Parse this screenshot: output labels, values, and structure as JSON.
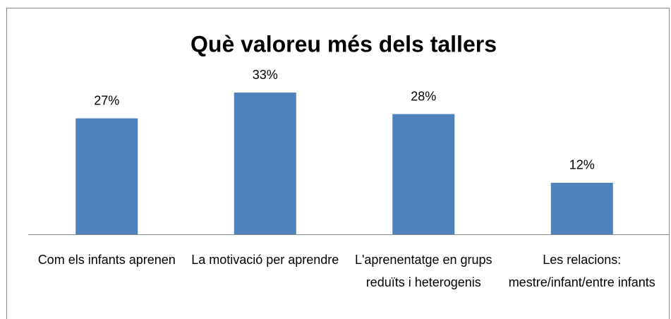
{
  "chart_data": {
    "type": "bar",
    "title": "Què valoreu més dels tallers",
    "categories": [
      "Com els infants aprenen",
      "La motivació per aprendre",
      "L'aprenentatge en grups reduïts i heterogenis",
      "Les relacions: mestre/infant/entre infants"
    ],
    "values": [
      27,
      33,
      28,
      12
    ],
    "value_labels": [
      "27%",
      "33%",
      "28%",
      "12%"
    ],
    "color": "#4f81bd",
    "ylim": [
      0,
      35
    ]
  }
}
